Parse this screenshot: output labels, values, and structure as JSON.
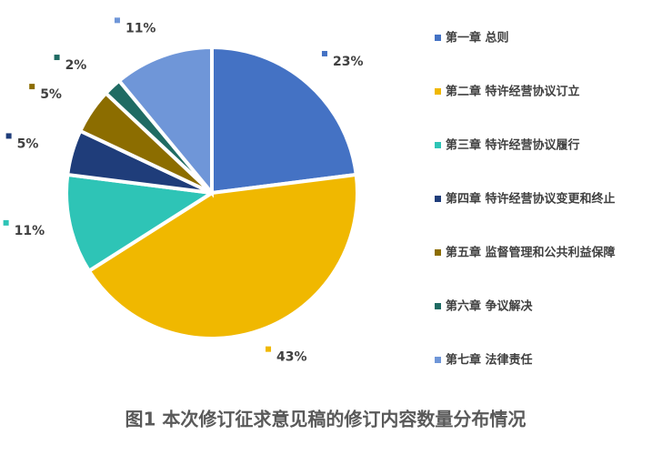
{
  "chart_data": {
    "type": "pie",
    "title": "图1 本次修订征求意见稿的修订内容数量分布情况",
    "categories": [
      "第一章 总则",
      "第二章 特许经营协议订立",
      "第三章 特许经营协议履行",
      "第四章 特许经营协议变更和终止",
      "第五章 监督管理和公共利益保障",
      "第六章 争议解决",
      "第七章 法律责任"
    ],
    "values": [
      23,
      43,
      11,
      5,
      5,
      2,
      11
    ],
    "value_labels": [
      "23%",
      "43%",
      "11%",
      "5%",
      "5%",
      "2%",
      "11%"
    ],
    "colors": [
      "#4472c4",
      "#f0b800",
      "#2ec4b6",
      "#1f3d7a",
      "#8c6d00",
      "#1f6b63",
      "#6f96d8"
    ],
    "legend": "right"
  }
}
